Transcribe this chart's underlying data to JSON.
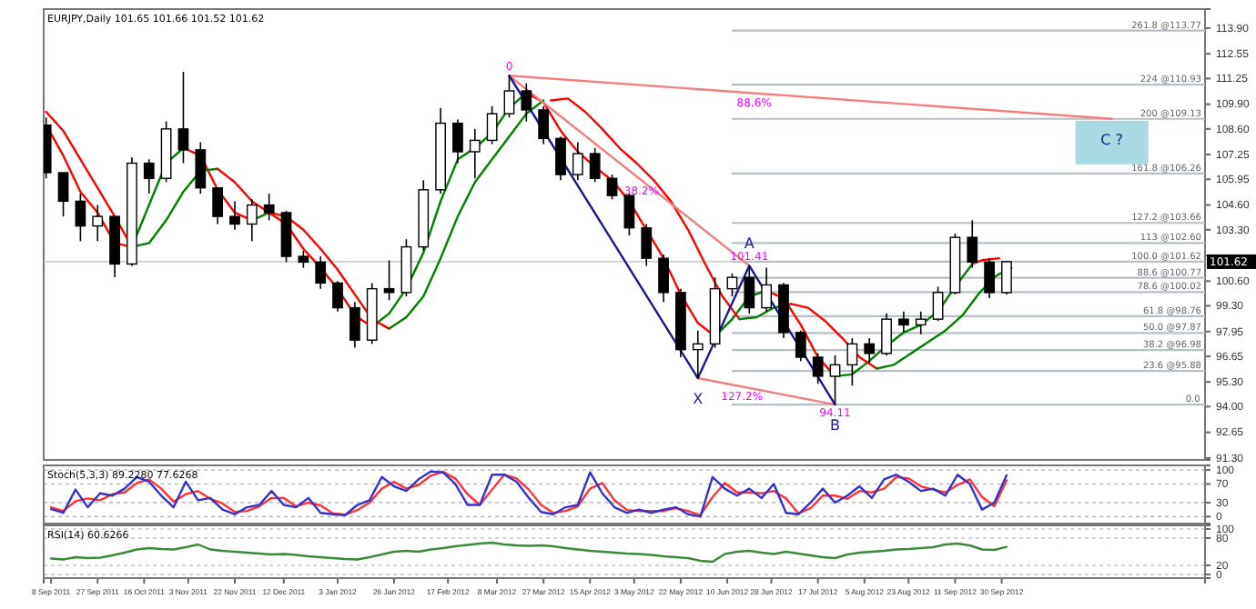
{
  "chart_data": [
    {
      "type": "candlestick",
      "title": "EURJPY,Daily  101.65 101.66 101.52 101.62",
      "color": "#000000",
      "x": [
        "2011-09-06",
        "2011-09-13",
        "2011-09-20",
        "2011-09-27",
        "2011-10-04",
        "2011-10-11",
        "2011-10-18",
        "2011-10-25",
        "2011-11-01",
        "2011-11-08",
        "2011-11-15",
        "2011-11-22",
        "2011-11-29",
        "2011-12-06",
        "2011-12-13",
        "2011-12-20",
        "2011-12-27",
        "2012-01-03",
        "2012-01-10",
        "2012-01-17",
        "2012-01-24",
        "2012-01-31",
        "2012-02-07",
        "2012-02-14",
        "2012-02-21",
        "2012-02-28",
        "2012-03-06",
        "2012-03-13",
        "2012-03-20",
        "2012-03-27",
        "2012-04-03",
        "2012-04-10",
        "2012-04-17",
        "2012-04-24",
        "2012-05-01",
        "2012-05-08",
        "2012-05-15",
        "2012-05-22",
        "2012-05-29",
        "2012-06-05",
        "2012-06-12",
        "2012-06-19",
        "2012-06-26",
        "2012-07-03",
        "2012-07-10",
        "2012-07-17",
        "2012-07-24",
        "2012-07-31",
        "2012-08-07",
        "2012-08-14",
        "2012-08-21",
        "2012-08-28",
        "2012-09-04",
        "2012-09-11",
        "2012-09-18",
        "2012-09-25",
        "2012-10-02"
      ],
      "ohlc": [
        [
          108.8,
          109.2,
          106.0,
          106.3
        ],
        [
          106.3,
          106.3,
          104.0,
          104.8
        ],
        [
          104.8,
          105.2,
          102.7,
          103.5
        ],
        [
          103.5,
          104.6,
          102.7,
          104.0
        ],
        [
          104.0,
          104.0,
          100.8,
          101.5
        ],
        [
          101.5,
          107.1,
          101.4,
          106.8
        ],
        [
          106.8,
          107.0,
          105.2,
          106.0
        ],
        [
          106.0,
          109.0,
          105.8,
          108.6
        ],
        [
          108.6,
          111.6,
          106.8,
          107.5
        ],
        [
          107.5,
          107.9,
          105.2,
          105.5
        ],
        [
          105.5,
          105.5,
          103.6,
          104.0
        ],
        [
          104.0,
          104.8,
          103.3,
          103.6
        ],
        [
          103.6,
          104.9,
          102.7,
          104.6
        ],
        [
          104.6,
          105.2,
          103.8,
          104.2
        ],
        [
          104.2,
          104.3,
          101.6,
          101.9
        ],
        [
          101.9,
          102.2,
          101.3,
          101.6
        ],
        [
          101.6,
          101.9,
          100.2,
          100.5
        ],
        [
          100.5,
          100.6,
          99.0,
          99.2
        ],
        [
          99.2,
          99.5,
          97.1,
          97.5
        ],
        [
          97.5,
          100.5,
          97.3,
          100.2
        ],
        [
          100.2,
          101.7,
          99.6,
          100.0
        ],
        [
          100.0,
          102.8,
          99.8,
          102.4
        ],
        [
          102.4,
          105.9,
          102.2,
          105.4
        ],
        [
          105.4,
          109.7,
          105.2,
          108.9
        ],
        [
          108.9,
          109.1,
          106.8,
          107.4
        ],
        [
          107.4,
          108.6,
          106.0,
          108.0
        ],
        [
          108.0,
          109.8,
          107.8,
          109.4
        ],
        [
          109.4,
          111.4,
          109.2,
          110.6
        ],
        [
          110.6,
          111.0,
          109.0,
          109.6
        ],
        [
          109.6,
          109.8,
          107.8,
          108.1
        ],
        [
          108.1,
          108.2,
          105.9,
          106.2
        ],
        [
          106.2,
          107.9,
          105.9,
          107.3
        ],
        [
          107.3,
          107.6,
          105.8,
          106.0
        ],
        [
          106.0,
          106.2,
          104.9,
          105.1
        ],
        [
          105.1,
          105.2,
          103.0,
          103.4
        ],
        [
          103.4,
          103.6,
          101.4,
          101.8
        ],
        [
          101.8,
          102.0,
          99.5,
          100.0
        ],
        [
          100.0,
          100.2,
          96.6,
          97.0
        ],
        [
          97.0,
          98.0,
          95.5,
          97.3
        ],
        [
          97.3,
          100.8,
          97.1,
          100.2
        ],
        [
          100.2,
          101.0,
          99.8,
          100.8
        ],
        [
          100.8,
          101.41,
          98.9,
          99.2
        ],
        [
          99.2,
          101.3,
          99.0,
          100.4
        ],
        [
          100.4,
          100.5,
          97.6,
          97.9
        ],
        [
          97.9,
          98.0,
          96.4,
          96.6
        ],
        [
          96.6,
          96.8,
          95.2,
          95.6
        ],
        [
          95.6,
          96.7,
          94.11,
          96.2
        ],
        [
          96.2,
          97.6,
          95.1,
          97.3
        ],
        [
          97.3,
          97.6,
          96.3,
          96.8
        ],
        [
          96.8,
          98.9,
          96.7,
          98.6
        ],
        [
          98.6,
          99.0,
          97.9,
          98.3
        ],
        [
          98.3,
          99.0,
          97.8,
          98.6
        ],
        [
          98.6,
          100.3,
          98.5,
          100.0
        ],
        [
          100.0,
          103.1,
          99.9,
          102.9
        ],
        [
          102.9,
          103.8,
          101.3,
          101.6
        ],
        [
          101.6,
          101.8,
          99.7,
          100.0
        ],
        [
          100.0,
          101.66,
          99.9,
          101.62
        ]
      ],
      "series": [
        {
          "type": "line",
          "color": "#ff0000",
          "x": [
            "2011-09-06",
            "2011-09-13",
            "2011-09-20",
            "2011-09-27",
            "2011-10-04",
            "2011-10-11"
          ],
          "values": [
            108.8,
            107.2,
            105.3,
            104.2,
            102.6,
            102.4
          ]
        },
        {
          "type": "line",
          "color": "#008000",
          "x": [
            "2011-10-11",
            "2011-10-18",
            "2011-10-25",
            "2011-11-01"
          ],
          "values": [
            102.4,
            104.6,
            106.8,
            107.6
          ]
        },
        {
          "type": "line",
          "color": "#ff0000",
          "x": [
            "2011-11-01",
            "2011-11-08",
            "2011-11-15",
            "2011-11-22",
            "2011-11-29"
          ],
          "values": [
            107.6,
            107.2,
            105.4,
            104.2,
            103.8
          ]
        },
        {
          "type": "line",
          "color": "#008000",
          "x": [
            "2011-11-29",
            "2011-12-06"
          ],
          "values": [
            103.8,
            104.2
          ]
        },
        {
          "type": "line",
          "color": "#ff0000",
          "x": [
            "2011-12-06",
            "2011-12-13",
            "2011-12-20",
            "2011-12-27",
            "2012-01-03",
            "2012-01-10",
            "2012-01-17"
          ],
          "values": [
            104.2,
            103.6,
            102.3,
            101.3,
            100.2,
            98.8,
            98.2
          ]
        },
        {
          "type": "line",
          "color": "#008000",
          "x": [
            "2012-01-17",
            "2012-01-24",
            "2012-01-31",
            "2012-02-07",
            "2012-02-14",
            "2012-02-21",
            "2012-02-28",
            "2012-03-06",
            "2012-03-13",
            "2012-03-20"
          ],
          "values": [
            98.2,
            98.9,
            100.2,
            102.1,
            104.8,
            107.0,
            107.6,
            108.4,
            109.7,
            110.5
          ]
        },
        {
          "type": "line",
          "color": "#ff0000",
          "x": [
            "2012-03-20",
            "2012-03-27",
            "2012-04-03",
            "2012-04-10",
            "2012-04-17",
            "2012-04-24",
            "2012-05-01",
            "2012-05-08",
            "2012-05-15",
            "2012-05-22",
            "2012-05-29",
            "2012-06-05"
          ],
          "values": [
            110.5,
            110.0,
            108.5,
            107.4,
            106.6,
            105.9,
            104.8,
            103.3,
            101.8,
            99.9,
            98.4,
            97.7
          ]
        },
        {
          "type": "line",
          "color": "#008000",
          "x": [
            "2012-06-05",
            "2012-06-12",
            "2012-06-19",
            "2012-06-26"
          ],
          "values": [
            97.7,
            98.6,
            99.8,
            100.1
          ]
        },
        {
          "type": "line",
          "color": "#ff0000",
          "x": [
            "2012-06-26",
            "2012-07-03",
            "2012-07-10",
            "2012-07-17",
            "2012-07-24"
          ],
          "values": [
            100.1,
            99.7,
            98.3,
            96.6,
            95.6
          ]
        },
        {
          "type": "line",
          "color": "#008000",
          "x": [
            "2012-07-24",
            "2012-07-31",
            "2012-08-07",
            "2012-08-14",
            "2012-08-21",
            "2012-08-28",
            "2012-09-04",
            "2012-09-11",
            "2012-09-18"
          ],
          "values": [
            95.6,
            95.7,
            96.4,
            97.2,
            97.9,
            98.3,
            99.0,
            100.3,
            101.5
          ]
        },
        {
          "type": "line",
          "color": "#ff0000",
          "x": [
            "2012-09-18",
            "2012-09-22",
            "2012-09-29"
          ],
          "values": [
            101.5,
            101.7,
            101.8
          ]
        },
        {
          "type": "line",
          "color": "#ff0000",
          "x": [
            "2011-09-06",
            "2011-09-13",
            "2011-09-20",
            "2011-09-27",
            "2011-10-04",
            "2011-10-11"
          ],
          "values": [
            109.5,
            108.5,
            107.0,
            105.5,
            104.0,
            102.4
          ]
        },
        {
          "type": "line",
          "color": "#008000",
          "x": [
            "2011-10-11",
            "2011-10-18",
            "2011-10-25",
            "2011-11-01",
            "2011-11-08",
            "2011-11-15"
          ],
          "values": [
            102.4,
            102.6,
            103.8,
            105.3,
            106.4,
            106.5
          ]
        },
        {
          "type": "line",
          "color": "#ff0000",
          "x": [
            "2011-11-15",
            "2011-11-22",
            "2011-11-29",
            "2011-12-06",
            "2011-12-13",
            "2011-12-20",
            "2011-12-27",
            "2012-01-03",
            "2012-01-10",
            "2012-01-17",
            "2012-01-24"
          ],
          "values": [
            106.5,
            105.8,
            104.8,
            104.2,
            104.0,
            103.3,
            102.3,
            101.2,
            99.9,
            98.6,
            98.1
          ]
        },
        {
          "type": "line",
          "color": "#008000",
          "x": [
            "2012-01-24",
            "2012-01-31",
            "2012-02-07",
            "2012-02-14",
            "2012-02-21",
            "2012-02-28",
            "2012-03-06",
            "2012-03-13",
            "2012-03-20",
            "2012-03-27"
          ],
          "values": [
            98.1,
            98.7,
            99.8,
            101.8,
            104.0,
            105.8,
            107.0,
            108.2,
            109.4,
            110.1
          ]
        },
        {
          "type": "line",
          "color": "#ff0000",
          "x": [
            "2012-03-30",
            "2012-04-06",
            "2012-04-13",
            "2012-04-20",
            "2012-04-27",
            "2012-05-04",
            "2012-05-11",
            "2012-05-18",
            "2012-05-25",
            "2012-06-01",
            "2012-06-08",
            "2012-06-15"
          ],
          "values": [
            110.1,
            110.2,
            109.5,
            108.6,
            107.6,
            106.8,
            105.9,
            104.8,
            103.3,
            101.5,
            99.8,
            98.6
          ]
        },
        {
          "type": "line",
          "color": "#008000",
          "x": [
            "2012-06-15",
            "2012-06-22",
            "2012-06-29",
            "2012-07-06"
          ],
          "values": [
            98.6,
            98.7,
            99.2,
            99.4
          ]
        },
        {
          "type": "line",
          "color": "#ff0000",
          "x": [
            "2012-07-06",
            "2012-07-13",
            "2012-07-20",
            "2012-07-27",
            "2012-08-03",
            "2012-08-10"
          ],
          "values": [
            99.4,
            99.2,
            98.5,
            97.6,
            96.6,
            96.0
          ]
        },
        {
          "type": "line",
          "color": "#008000",
          "x": [
            "2012-08-10",
            "2012-08-17",
            "2012-08-24",
            "2012-08-31",
            "2012-09-07",
            "2012-09-14",
            "2012-09-21",
            "2012-09-28",
            "2012-10-04"
          ],
          "values": [
            96.0,
            96.2,
            96.8,
            97.4,
            98.0,
            98.8,
            100.0,
            100.9,
            101.3
          ]
        },
        {
          "type": "line",
          "color": "#f08080",
          "x": [
            "2012-03-13",
            "2012-11-14"
          ],
          "values": [
            111.4,
            109.13
          ]
        },
        {
          "type": "line",
          "color": "#f08080",
          "x": [
            "2012-03-13",
            "2012-06-19"
          ],
          "values": [
            111.4,
            101.41
          ]
        },
        {
          "type": "line",
          "color": "#f08080",
          "x": [
            "2012-05-29",
            "2012-07-24"
          ],
          "values": [
            95.5,
            94.11
          ]
        },
        {
          "type": "line",
          "color": "#1a1a8c",
          "x": [
            "2012-03-13",
            "2012-05-29",
            "2012-06-19",
            "2012-07-24"
          ],
          "values": [
            111.4,
            95.5,
            101.41,
            94.11
          ]
        }
      ],
      "annotations": [
        {
          "text": "0",
          "x": "2012-03-13",
          "y": 111.4
        },
        {
          "text": "X",
          "x": "2012-05-29",
          "y": 95.5
        },
        {
          "text": "A",
          "x": "2012-06-19",
          "y": 101.41
        },
        {
          "text": "B",
          "x": "2012-07-24",
          "y": 94.11
        },
        {
          "text": "101.41",
          "x": "2012-06-19",
          "y": 101.41
        },
        {
          "text": "94.11",
          "x": "2012-07-24",
          "y": 94.11
        },
        {
          "text": "127.2%",
          "x": "2012-06-16",
          "y": 95.1
        },
        {
          "text": "0.0",
          "x": "2012-12-20",
          "y": 94.11
        },
        {
          "text": "38.2%",
          "x": "2012-05-06",
          "y": 105.9
        },
        {
          "text": "88.6%",
          "x": "2012-06-21",
          "y": 110.5
        },
        {
          "text": "C ?",
          "x": "2012-11-14",
          "y": 109.13
        }
      ],
      "ref_lines": [
        {
          "axis": "y",
          "value": 113.77,
          "label": "261.8 @113.77"
        },
        {
          "axis": "y",
          "value": 110.93,
          "label": "224 @110.93"
        },
        {
          "axis": "y",
          "value": 109.13,
          "label": "200 @109.13"
        },
        {
          "axis": "y",
          "value": 106.26,
          "label": "161.8 @106.26"
        },
        {
          "axis": "y",
          "value": 103.66,
          "label": "127.2 @103.66"
        },
        {
          "axis": "y",
          "value": 102.6,
          "label": "113 @102.60"
        },
        {
          "axis": "y",
          "value": 101.62,
          "label": "100.0 @101.62"
        },
        {
          "axis": "y",
          "value": 100.77,
          "label": "88.6 @100.77"
        },
        {
          "axis": "y",
          "value": 100.02,
          "label": "78.6 @100.02"
        },
        {
          "axis": "y",
          "value": 98.76,
          "label": "61.8 @98.76"
        },
        {
          "axis": "y",
          "value": 97.87,
          "label": "50.0 @97.87"
        },
        {
          "axis": "y",
          "value": 96.98,
          "label": "38.2 @96.98"
        },
        {
          "axis": "y",
          "value": 95.88,
          "label": "23.6 @95.88"
        },
        {
          "axis": "y",
          "value": 94.11
        },
        {
          "axis": "y",
          "value": 101.62,
          "label": "101.62",
          "line_style": "solid"
        }
      ],
      "xlim": [
        "2011-09-05",
        "2012-12-22"
      ],
      "ylim": [
        91.2,
        114.9
      ],
      "yticks": [
        {
          "value": 113.9,
          "label": "113.90"
        },
        {
          "value": 112.55,
          "label": "112.55"
        },
        {
          "value": 111.25,
          "label": "111.25"
        },
        {
          "value": 109.9,
          "label": "109.90"
        },
        {
          "value": 108.6,
          "label": "108.60"
        },
        {
          "value": 107.25,
          "label": "107.25"
        },
        {
          "value": 105.95,
          "label": "105.95"
        },
        {
          "value": 104.6,
          "label": "104.60"
        },
        {
          "value": 103.3,
          "label": "103.30"
        },
        {
          "value": 101.95,
          "label": null
        },
        {
          "value": 100.6,
          "label": "100.60"
        },
        {
          "value": 99.3,
          "label": "99.30"
        },
        {
          "value": 97.95,
          "label": "97.95"
        },
        {
          "value": 96.65,
          "label": "96.65"
        },
        {
          "value": 95.3,
          "label": "95.30"
        },
        {
          "value": 94.0,
          "label": "94.00"
        },
        {
          "value": 92.65,
          "label": "92.65"
        },
        {
          "value": 91.3,
          "label": "91.30"
        }
      ],
      "tick_labels": "y"
    },
    {
      "type": "line",
      "title": "Stoch(5,3,3) 89.2280 77.6268",
      "x": [
        "2011-09-08",
        "2011-09-13",
        "2011-09-18",
        "2011-09-23",
        "2011-09-28",
        "2011-10-03",
        "2011-10-08",
        "2011-10-13",
        "2011-10-18",
        "2011-10-23",
        "2011-10-28",
        "2011-11-02",
        "2011-11-07",
        "2011-11-12",
        "2011-11-17",
        "2011-11-22",
        "2011-11-27",
        "2011-12-02",
        "2011-12-07",
        "2011-12-12",
        "2011-12-17",
        "2011-12-22",
        "2011-12-27",
        "2012-01-01",
        "2012-01-06",
        "2012-01-11",
        "2012-01-16",
        "2012-01-21",
        "2012-01-26",
        "2012-01-31",
        "2012-02-05",
        "2012-02-10",
        "2012-02-15",
        "2012-02-20",
        "2012-02-25",
        "2012-03-01",
        "2012-03-06",
        "2012-03-11",
        "2012-03-16",
        "2012-03-21",
        "2012-03-26",
        "2012-03-31",
        "2012-04-05",
        "2012-04-10",
        "2012-04-15",
        "2012-04-20",
        "2012-04-25",
        "2012-04-30",
        "2012-05-05",
        "2012-05-10",
        "2012-05-15",
        "2012-05-20",
        "2012-05-25",
        "2012-05-30",
        "2012-06-04",
        "2012-06-09",
        "2012-06-14",
        "2012-06-19",
        "2012-06-24",
        "2012-06-29",
        "2012-07-04",
        "2012-07-09",
        "2012-07-14",
        "2012-07-19",
        "2012-07-24",
        "2012-07-29",
        "2012-08-03",
        "2012-08-08",
        "2012-08-13",
        "2012-08-18",
        "2012-08-23",
        "2012-08-28",
        "2012-09-02",
        "2012-09-07",
        "2012-09-12",
        "2012-09-17",
        "2012-09-22",
        "2012-09-27",
        "2012-10-02"
      ],
      "series": [
        {
          "color": "#ff3333",
          "values": [
            20,
            12,
            33,
            39,
            35,
            48,
            52,
            72,
            80,
            60,
            32,
            48,
            55,
            38,
            28,
            10,
            12,
            22,
            40,
            40,
            22,
            30,
            24,
            7,
            4,
            14,
            30,
            60,
            75,
            60,
            68,
            88,
            96,
            82,
            48,
            25,
            58,
            90,
            82,
            58,
            25,
            8,
            12,
            22,
            60,
            72,
            35,
            14,
            12,
            12,
            12,
            18,
            12,
            3,
            42,
            72,
            52,
            52,
            50,
            55,
            39,
            7,
            18,
            45,
            45,
            38,
            55,
            52,
            60,
            85,
            82,
            65,
            58,
            52,
            68,
            80,
            42,
            22,
            78
          ]
        },
        {
          "color": "#3333cc",
          "values": [
            16,
            8,
            58,
            20,
            50,
            45,
            60,
            85,
            75,
            45,
            20,
            75,
            35,
            40,
            15,
            5,
            20,
            25,
            55,
            25,
            20,
            40,
            8,
            5,
            3,
            25,
            35,
            85,
            65,
            55,
            80,
            97,
            95,
            70,
            25,
            25,
            90,
            90,
            75,
            40,
            10,
            5,
            20,
            25,
            95,
            50,
            20,
            8,
            15,
            8,
            15,
            20,
            5,
            0,
            85,
            60,
            45,
            60,
            40,
            70,
            8,
            5,
            30,
            60,
            30,
            45,
            65,
            40,
            80,
            90,
            75,
            55,
            60,
            45,
            90,
            70,
            15,
            30,
            89
          ]
        }
      ],
      "xlim": [
        "2011-09-05",
        "2012-12-22"
      ],
      "ylim": [
        -15,
        110
      ],
      "yticks": [
        0,
        30,
        70,
        100
      ],
      "grid": "y",
      "tick_labels": "y"
    },
    {
      "type": "line",
      "title": "RSI(14) 60.6266",
      "x": [
        "2011-09-08",
        "2011-09-13",
        "2011-09-18",
        "2011-09-23",
        "2011-09-28",
        "2011-10-03",
        "2011-10-08",
        "2011-10-13",
        "2011-10-18",
        "2011-10-23",
        "2011-10-28",
        "2011-11-02",
        "2011-11-07",
        "2011-11-12",
        "2011-11-17",
        "2011-11-22",
        "2011-11-27",
        "2011-12-02",
        "2011-12-07",
        "2011-12-12",
        "2011-12-17",
        "2011-12-22",
        "2011-12-27",
        "2012-01-01",
        "2012-01-06",
        "2012-01-11",
        "2012-01-16",
        "2012-01-21",
        "2012-01-26",
        "2012-01-31",
        "2012-02-05",
        "2012-02-10",
        "2012-02-15",
        "2012-02-20",
        "2012-02-25",
        "2012-03-01",
        "2012-03-06",
        "2012-03-11",
        "2012-03-16",
        "2012-03-21",
        "2012-03-26",
        "2012-03-31",
        "2012-04-05",
        "2012-04-10",
        "2012-04-15",
        "2012-04-20",
        "2012-04-25",
        "2012-04-30",
        "2012-05-05",
        "2012-05-10",
        "2012-05-15",
        "2012-05-20",
        "2012-05-25",
        "2012-05-30",
        "2012-06-04",
        "2012-06-09",
        "2012-06-14",
        "2012-06-19",
        "2012-06-24",
        "2012-06-29",
        "2012-07-04",
        "2012-07-09",
        "2012-07-14",
        "2012-07-19",
        "2012-07-24",
        "2012-07-29",
        "2012-08-03",
        "2012-08-08",
        "2012-08-13",
        "2012-08-18",
        "2012-08-23",
        "2012-08-28",
        "2012-09-02",
        "2012-09-07",
        "2012-09-12",
        "2012-09-17",
        "2012-09-22",
        "2012-09-27",
        "2012-10-02"
      ],
      "series": [
        {
          "color": "#3a8a3a",
          "values": [
            35,
            33,
            38,
            36,
            37,
            42,
            48,
            55,
            58,
            56,
            55,
            60,
            66,
            55,
            52,
            50,
            48,
            46,
            44,
            45,
            43,
            40,
            38,
            36,
            34,
            33,
            38,
            44,
            50,
            52,
            50,
            55,
            58,
            62,
            65,
            68,
            70,
            66,
            64,
            63,
            64,
            62,
            58,
            55,
            52,
            50,
            48,
            46,
            45,
            43,
            40,
            38,
            36,
            30,
            28,
            45,
            50,
            52,
            48,
            45,
            50,
            46,
            42,
            38,
            36,
            44,
            48,
            50,
            52,
            55,
            56,
            58,
            60,
            66,
            68,
            64,
            55,
            54,
            60.6
          ]
        }
      ],
      "xlim": [
        "2011-09-05",
        "2012-12-22"
      ],
      "xticks": [
        {
          "value": "2011-09-08",
          "label": "8 Sep 2011"
        },
        {
          "value": "2011-09-27",
          "label": "27 Sep 2011"
        },
        {
          "value": "2011-10-16",
          "label": "16 Oct 2011"
        },
        {
          "value": "2011-11-03",
          "label": "3 Nov 2011"
        },
        {
          "value": "2011-11-22",
          "label": "22 Nov 2011"
        },
        {
          "value": "2011-12-12",
          "label": "12 Dec 2011"
        },
        {
          "value": "2012-01-03",
          "label": "3 Jan 2012"
        },
        {
          "value": "2012-01-26",
          "label": "26 Jan 2012"
        },
        {
          "value": "2012-02-17",
          "label": "17 Feb 2012"
        },
        {
          "value": "2012-03-08",
          "label": "8 Mar 2012"
        },
        {
          "value": "2012-03-27",
          "label": "27 Mar 2012"
        },
        {
          "value": "2012-04-15",
          "label": "15 Apr 2012"
        },
        {
          "value": "2012-05-03",
          "label": "3 May 2012"
        },
        {
          "value": "2012-05-22",
          "label": "22 May 2012"
        },
        {
          "value": "2012-06-10",
          "label": "10 Jun 2012"
        },
        {
          "value": "2012-06-28",
          "label": "28 Jun 2012"
        },
        {
          "value": "2012-07-17",
          "label": "17 Jul 2012"
        },
        {
          "value": "2012-08-05",
          "label": "5 Aug 2012"
        },
        {
          "value": "2012-08-23",
          "label": "23 Aug 2012"
        },
        {
          "value": "2012-09-11",
          "label": "11 Sep 2012"
        },
        {
          "value": "2012-09-30",
          "label": "30 Sep 2012"
        }
      ],
      "ylim": [
        -8,
        108
      ],
      "yticks": [
        0,
        20,
        80,
        100
      ],
      "grid": "y"
    }
  ]
}
